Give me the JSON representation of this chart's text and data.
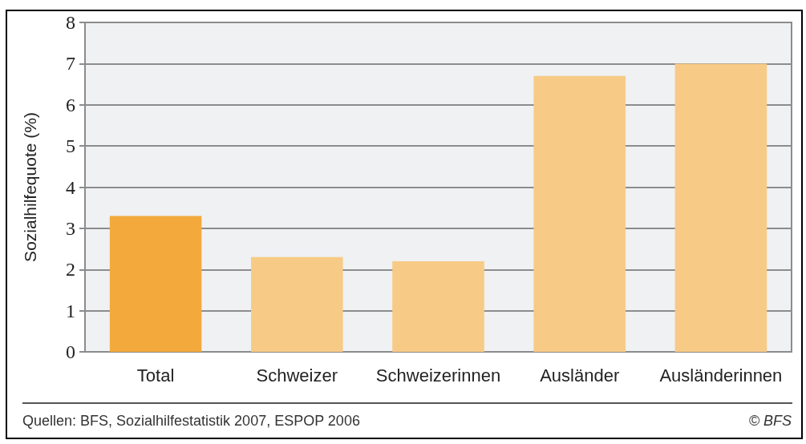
{
  "chart_data": {
    "type": "bar",
    "categories": [
      "Total",
      "Schweizer",
      "Schweizerinnen",
      "Ausländer",
      "Ausländerinnen"
    ],
    "values": [
      3.3,
      2.3,
      2.2,
      6.7,
      7.0
    ],
    "colors": [
      "#f3a93b",
      "#f7ca86",
      "#f7ca86",
      "#f7ca86",
      "#f7ca86"
    ],
    "ylabel": "Sozialhilfequote (%)",
    "ylim": [
      0,
      8
    ],
    "yticks": [
      0,
      1,
      2,
      3,
      4,
      5,
      6,
      7,
      8
    ],
    "grid": "y",
    "annotations": [
      "Quellen: BFS, Sozialhilfestatistik 2007, ESPOP 2006",
      "© BFS"
    ]
  }
}
